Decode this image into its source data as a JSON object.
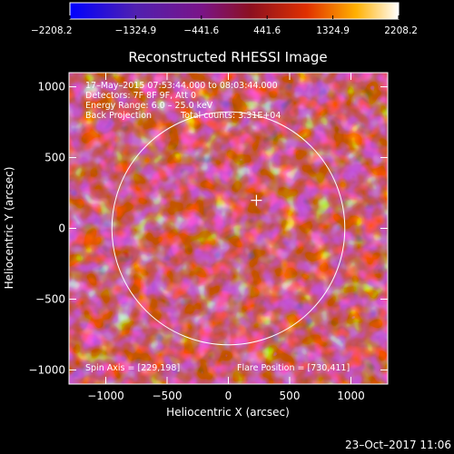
{
  "chart_data": {
    "type": "heatmap",
    "title": "Reconstructed RHESSI Image",
    "xlabel": "Heliocentric X (arcsec)",
    "ylabel": "Heliocentric Y (arcsec)",
    "xlim": [
      -1300,
      1300
    ],
    "ylim": [
      -1100,
      1100
    ],
    "xticks": [
      -1000,
      -500,
      0,
      500,
      1000
    ],
    "yticks": [
      -1000,
      -500,
      0,
      500,
      1000
    ],
    "xtick_labels": [
      "−1000",
      "−500",
      "0",
      "500",
      "1000"
    ],
    "ytick_labels": [
      "−1000",
      "−500",
      "0",
      "500",
      "1000"
    ],
    "colorbar": {
      "min": -2208.2,
      "max": 2208.2,
      "ticks": [
        -2208.2,
        -1324.9,
        -441.6,
        441.6,
        1324.9,
        2208.2
      ],
      "tick_labels": [
        "−2208.2",
        "−1324.9",
        "−441.6",
        "441.6",
        "1324.9",
        "2208.2"
      ]
    },
    "annotations": {
      "time_range": "17–May–2015 07:53:44.000 to 08:03:44.000",
      "detectors": "Detectors: 7F 8F 9F, Att 0",
      "energy_range": "Energy Range: 6.0 – 25.0 keV",
      "method": "Back Projection",
      "total_counts": "Total counts: 3.31E+04",
      "spin_axis": "Spin Axis = [229,198]",
      "flare_position": "Flare Position = [730,411]"
    },
    "solar_limb_radius_arcsec": 950,
    "crosshair_position": [
      229,
      198
    ],
    "footer_date": "23–Oct–2017 11:06"
  },
  "colors": {
    "background": "#000000",
    "colormap": [
      "#0000ff",
      "#5020b0",
      "#7a1488",
      "#8c1020",
      "#e03000",
      "#ffb000",
      "#ffffff"
    ],
    "limb": "#ffffff",
    "text": "#ffffff"
  }
}
